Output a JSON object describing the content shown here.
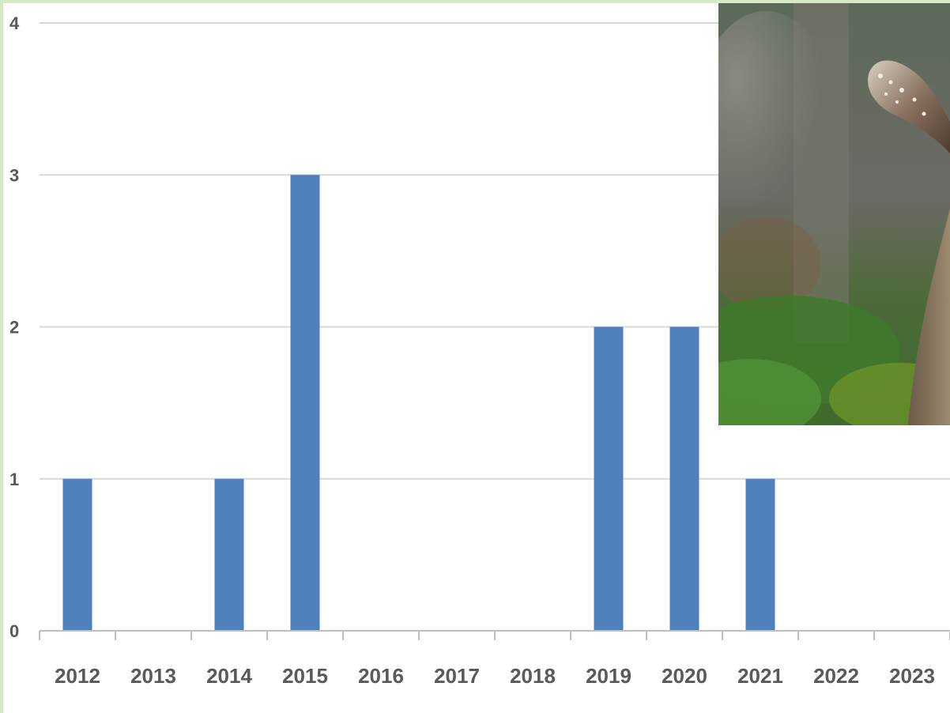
{
  "colors": {
    "bar": "#4f81bd",
    "grid": "#d9d9d9",
    "axis": "#bfbfbf",
    "tick_text": "#595959",
    "frame": "#d6ebc4"
  },
  "chart_data": {
    "type": "bar",
    "categories": [
      "2012",
      "2013",
      "2014",
      "2015",
      "2016",
      "2017",
      "2018",
      "2019",
      "2020",
      "2021",
      "2022",
      "2023"
    ],
    "values": [
      1,
      0,
      1,
      3,
      0,
      0,
      0,
      2,
      2,
      1,
      0,
      0
    ],
    "yticks": [
      "0",
      "1",
      "2",
      "3",
      "4"
    ],
    "ylim": [
      0,
      4
    ],
    "grid": true,
    "legend": "none"
  },
  "photo": {
    "subject": "mushroom in forest",
    "icon": "mushroom-photo"
  }
}
